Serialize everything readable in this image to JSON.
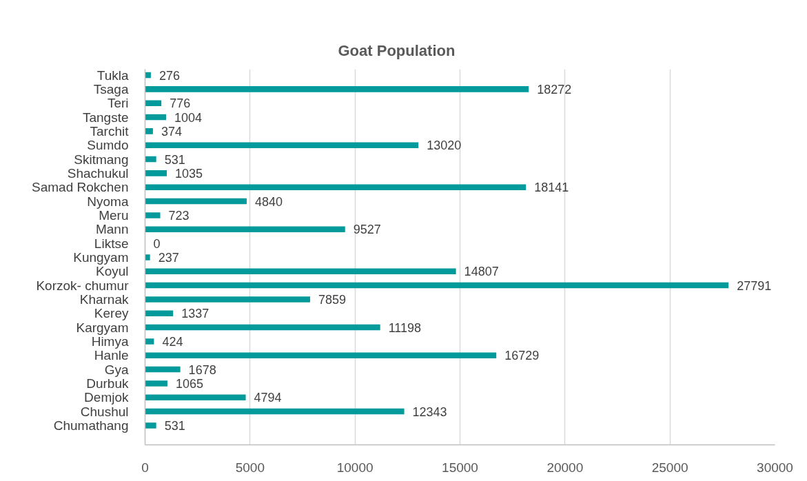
{
  "chart_data": {
    "type": "bar",
    "orientation": "horizontal",
    "title": "Goat Population",
    "categories": [
      "Tukla",
      "Tsaga",
      "Teri",
      "Tangste",
      "Tarchit",
      "Sumdo",
      "Skitmang",
      "Shachukul",
      "Samad Rokchen",
      "Nyoma",
      "Meru",
      "Mann",
      "Liktse",
      "Kungyam",
      "Koyul",
      "Korzok- chumur",
      "Kharnak",
      "Kerey",
      "Kargyam",
      "Himya",
      "Hanle",
      "Gya",
      "Durbuk",
      "Demjok",
      "Chushul",
      "Chumathang"
    ],
    "values": [
      276,
      18272,
      776,
      1004,
      374,
      13020,
      531,
      1035,
      18141,
      4840,
      723,
      9527,
      0,
      237,
      14807,
      27791,
      7859,
      1337,
      11198,
      424,
      16729,
      1678,
      1065,
      4794,
      12343,
      531
    ],
    "color": "#029a9a",
    "xlim": [
      0,
      30000
    ],
    "xticks": [
      0,
      5000,
      10000,
      15000,
      20000,
      25000,
      30000
    ],
    "grid": "x",
    "data_labels": true
  }
}
